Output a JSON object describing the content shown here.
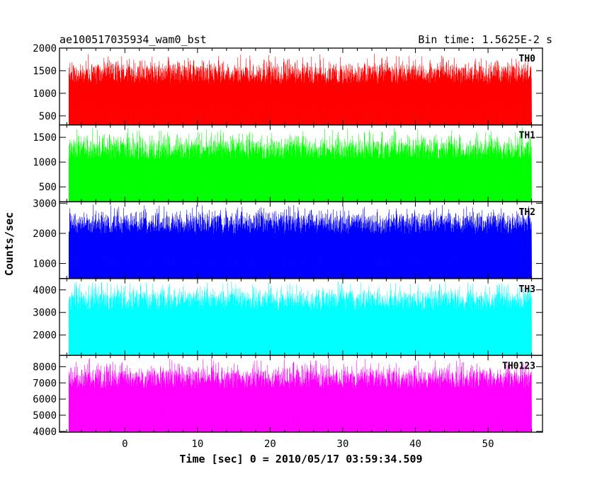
{
  "chart_data": {
    "type": "line",
    "title": "ae100517035934_wam0_bst",
    "bin_time": "Bin time: 1.5625E-2 s",
    "xlabel": "Time [sec] 0 = 2010/05/17 03:59:34.509",
    "ylabel": "Counts/sec",
    "xlim": [
      -9,
      57.5
    ],
    "xticks": [
      0,
      10,
      20,
      30,
      40,
      50
    ],
    "data_x_range": [
      -7.7,
      56.0
    ],
    "grid": false,
    "legend": "none",
    "panels": [
      {
        "name": "TH0",
        "color": "#ff0000",
        "ylim": [
          300,
          2000
        ],
        "yticks": [
          500,
          1000,
          1500,
          2000
        ],
        "envelope": {
          "baseline": 300,
          "min": 330,
          "q_low": 480,
          "q_high": 1600,
          "max": 1900
        }
      },
      {
        "name": "TH1",
        "color": "#00ff00",
        "ylim": [
          200,
          1750
        ],
        "yticks": [
          500,
          1000,
          1500
        ],
        "envelope": {
          "baseline": 200,
          "min": 240,
          "q_low": 400,
          "q_high": 1400,
          "max": 1720
        }
      },
      {
        "name": "TH2",
        "color": "#0000ff",
        "ylim": [
          500,
          3050
        ],
        "yticks": [
          1000,
          2000,
          3000
        ],
        "envelope": {
          "baseline": 500,
          "min": 580,
          "q_low": 850,
          "q_high": 2600,
          "max": 3000
        }
      },
      {
        "name": "TH3",
        "color": "#00ffff",
        "ylim": [
          1100,
          4500
        ],
        "yticks": [
          2000,
          3000,
          4000
        ],
        "envelope": {
          "baseline": 1100,
          "min": 1250,
          "q_low": 1650,
          "q_high": 3850,
          "max": 4450
        }
      },
      {
        "name": "TH0123",
        "color": "#ff00ff",
        "ylim": [
          3950,
          8700
        ],
        "yticks": [
          4000,
          5000,
          6000,
          7000,
          8000
        ],
        "envelope": {
          "baseline": 3950,
          "min": 4000,
          "q_low": 4700,
          "q_high": 7700,
          "max": 8600
        }
      }
    ]
  }
}
